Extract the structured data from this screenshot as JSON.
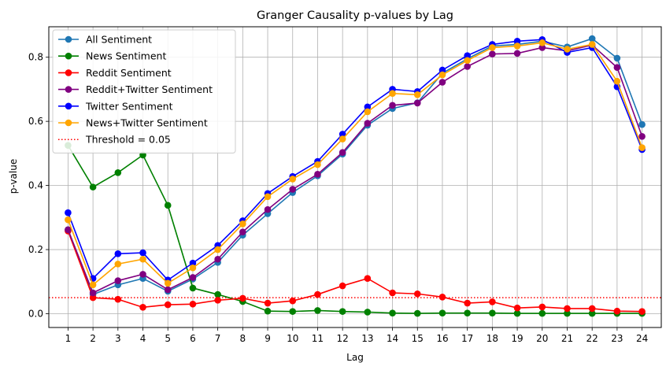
{
  "chart_data": {
    "type": "line",
    "title": "Granger Causality p-values by Lag",
    "xlabel": "Lag",
    "ylabel": "p-value",
    "x": [
      1,
      2,
      3,
      4,
      5,
      6,
      7,
      8,
      9,
      10,
      11,
      12,
      13,
      14,
      15,
      16,
      17,
      18,
      19,
      20,
      21,
      22,
      23,
      24
    ],
    "xlim": [
      0.23,
      24.77
    ],
    "ylim": [
      -0.043,
      0.895
    ],
    "yticks": [
      0.0,
      0.2,
      0.4,
      0.6,
      0.8
    ],
    "ytick_labels": [
      "0.0",
      "0.2",
      "0.4",
      "0.6",
      "0.8"
    ],
    "grid": true,
    "legend_position": "upper-left",
    "series": [
      {
        "name": "All Sentiment",
        "color": "#1f77b4",
        "values": [
          0.262,
          0.06,
          0.09,
          0.11,
          0.07,
          0.108,
          0.16,
          0.245,
          0.312,
          0.378,
          0.43,
          0.498,
          0.588,
          0.64,
          0.658,
          0.75,
          0.795,
          0.835,
          0.84,
          0.85,
          0.832,
          0.858,
          0.797,
          0.59
        ]
      },
      {
        "name": "News Sentiment",
        "color": "#008000",
        "values": [
          0.525,
          0.395,
          0.44,
          0.495,
          0.338,
          0.08,
          0.06,
          0.038,
          0.008,
          0.007,
          0.01,
          0.007,
          0.005,
          0.002,
          0.001,
          0.002,
          0.002,
          0.002,
          0.001,
          0.001,
          0.001,
          0.001,
          0.001,
          0.001
        ]
      },
      {
        "name": "Reddit Sentiment",
        "color": "#ff0000",
        "values": [
          0.258,
          0.05,
          0.045,
          0.02,
          0.028,
          0.03,
          0.042,
          0.048,
          0.033,
          0.04,
          0.06,
          0.087,
          0.11,
          0.065,
          0.062,
          0.052,
          0.033,
          0.037,
          0.018,
          0.021,
          0.016,
          0.016,
          0.008,
          0.007
        ]
      },
      {
        "name": "Reddit+Twitter Sentiment",
        "color": "#800080",
        "values": [
          0.262,
          0.065,
          0.103,
          0.123,
          0.075,
          0.113,
          0.17,
          0.255,
          0.325,
          0.388,
          0.435,
          0.503,
          0.594,
          0.65,
          0.657,
          0.722,
          0.771,
          0.81,
          0.812,
          0.83,
          0.82,
          0.838,
          0.768,
          0.553
        ]
      },
      {
        "name": "Twitter Sentiment",
        "color": "#0000ff",
        "values": [
          0.315,
          0.11,
          0.187,
          0.19,
          0.105,
          0.158,
          0.213,
          0.29,
          0.375,
          0.428,
          0.475,
          0.56,
          0.645,
          0.7,
          0.693,
          0.76,
          0.805,
          0.84,
          0.85,
          0.855,
          0.815,
          0.83,
          0.708,
          0.512
        ]
      },
      {
        "name": "News+Twitter Sentiment",
        "color": "#ffa500",
        "values": [
          0.293,
          0.09,
          0.155,
          0.17,
          0.095,
          0.143,
          0.2,
          0.28,
          0.365,
          0.42,
          0.465,
          0.545,
          0.63,
          0.687,
          0.683,
          0.745,
          0.79,
          0.83,
          0.835,
          0.845,
          0.825,
          0.84,
          0.725,
          0.518
        ]
      }
    ],
    "threshold": {
      "name": "Threshold = 0.05",
      "value": 0.05,
      "color": "#ff0000",
      "style": "dotted"
    }
  }
}
